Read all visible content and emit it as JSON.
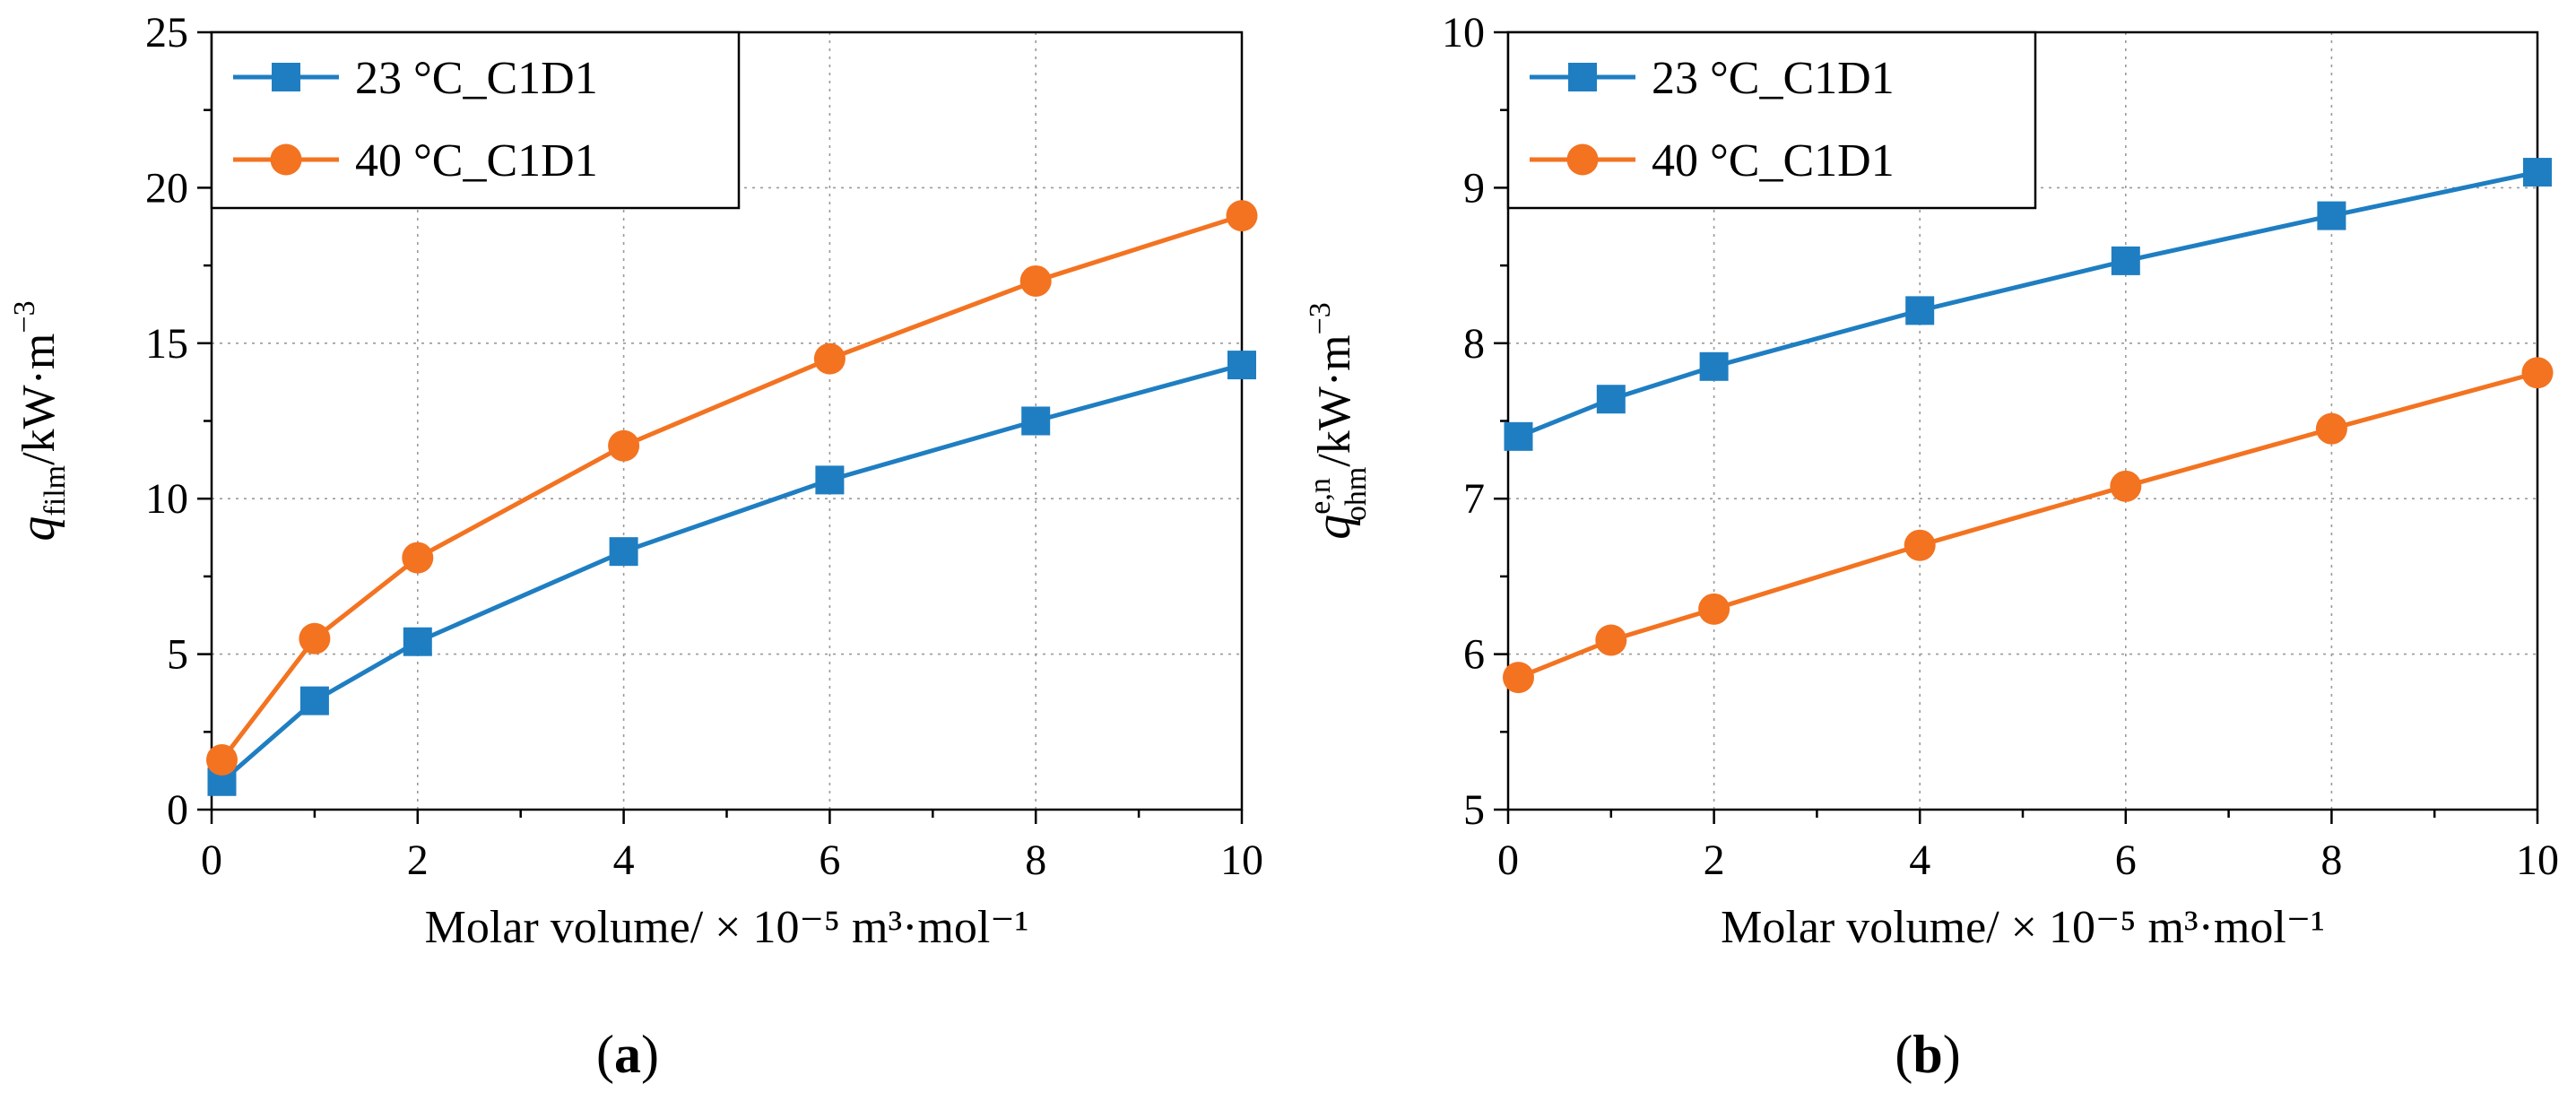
{
  "figure": {
    "panels": [
      {
        "label_prefix": "(",
        "letter": "a",
        "label_suffix": ")"
      },
      {
        "label_prefix": "(",
        "letter": "b",
        "label_suffix": ")"
      }
    ]
  },
  "colors": {
    "blue": "#1f7ec2",
    "orange": "#f37321",
    "grid": "#9a9a9a",
    "axis": "#000000"
  },
  "chart_data": [
    {
      "type": "line",
      "panel": "a",
      "title": "",
      "xlabel": "Molar volume/ × 10⁻⁵ m³·mol⁻¹",
      "ylabel_parts": {
        "main": "q",
        "sub": "film",
        "unit": "/kW·m",
        "exp": "−3"
      },
      "x": [
        0.1,
        1,
        2,
        4,
        6,
        8,
        10
      ],
      "xlim": [
        0,
        10
      ],
      "ylim": [
        0,
        25
      ],
      "xticks": [
        0,
        2,
        4,
        6,
        8,
        10
      ],
      "yticks": [
        0,
        5,
        10,
        15,
        20,
        25
      ],
      "grid": true,
      "legend_position": "top-left",
      "series": [
        {
          "name": "23 °C_C1D1",
          "marker": "square",
          "color": "#1f7ec2",
          "values": [
            0.9,
            3.5,
            5.4,
            8.3,
            10.6,
            12.5,
            14.3
          ]
        },
        {
          "name": "40 °C_C1D1",
          "marker": "circle",
          "color": "#f37321",
          "values": [
            1.6,
            5.5,
            8.1,
            11.7,
            14.5,
            17.0,
            19.1
          ]
        }
      ]
    },
    {
      "type": "line",
      "panel": "b",
      "title": "",
      "xlabel": "Molar volume/ × 10⁻⁵ m³·mol⁻¹",
      "ylabel_parts": {
        "main": "q",
        "sub": "ohm",
        "sup": "e,n",
        "unit": "/kW·m",
        "exp": "−3"
      },
      "x": [
        0.1,
        1,
        2,
        4,
        6,
        8,
        10
      ],
      "xlim": [
        0,
        10
      ],
      "ylim": [
        5,
        10
      ],
      "xticks": [
        0,
        2,
        4,
        6,
        8,
        10
      ],
      "yticks": [
        5,
        6,
        7,
        8,
        9,
        10
      ],
      "grid": true,
      "legend_position": "top-left",
      "series": [
        {
          "name": "23 °C_C1D1",
          "marker": "square",
          "color": "#1f7ec2",
          "values": [
            7.4,
            7.64,
            7.85,
            8.21,
            8.53,
            8.82,
            9.1
          ]
        },
        {
          "name": "40 °C_C1D1",
          "marker": "circle",
          "color": "#f37321",
          "values": [
            5.85,
            6.09,
            6.29,
            6.7,
            7.08,
            7.45,
            7.81
          ]
        }
      ]
    }
  ]
}
